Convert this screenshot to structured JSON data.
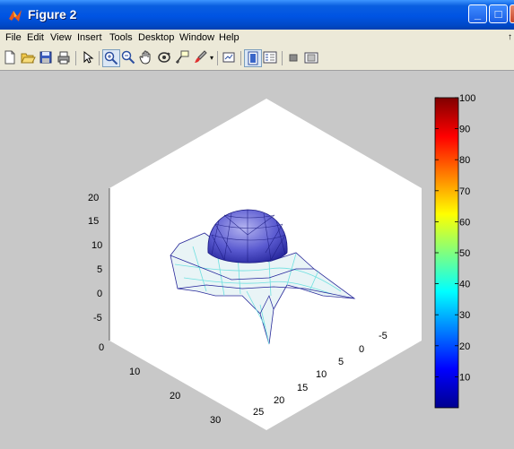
{
  "window": {
    "title": "Figure 2",
    "controls": {
      "minimize": "_",
      "maximize": "□",
      "close": "X"
    }
  },
  "menu": {
    "items": [
      "File",
      "Edit",
      "View",
      "Insert",
      "Tools",
      "Desktop",
      "Window",
      "Help"
    ],
    "overflow_glyph": "↑"
  },
  "toolbar": {
    "tools": [
      {
        "name": "new-figure-icon",
        "active": false
      },
      {
        "name": "open-file-icon",
        "active": false
      },
      {
        "name": "save-icon",
        "active": false
      },
      {
        "name": "print-icon",
        "active": false
      },
      {
        "name": "edit-plot-arrow-icon",
        "active": false
      },
      {
        "name": "zoom-in-icon",
        "active": true
      },
      {
        "name": "zoom-out-icon",
        "active": false
      },
      {
        "name": "pan-hand-icon",
        "active": false
      },
      {
        "name": "rotate-3d-icon",
        "active": false
      },
      {
        "name": "data-cursor-icon",
        "active": false
      },
      {
        "name": "brush-icon",
        "active": false
      },
      {
        "name": "link-plot-icon",
        "active": false
      },
      {
        "name": "colorbar-icon",
        "active": true
      },
      {
        "name": "legend-icon",
        "active": false
      },
      {
        "name": "hide-plot-tools-icon",
        "active": false
      },
      {
        "name": "show-plot-tools-icon",
        "active": false
      }
    ]
  },
  "chart_data": {
    "type": "surface",
    "colormap": "jet",
    "z_ticks": [
      "-5",
      "0",
      "5",
      "10",
      "15",
      "20"
    ],
    "x_ticks": [
      "0",
      "10",
      "20",
      "30"
    ],
    "y_ticks": [
      "25",
      "20",
      "15",
      "10",
      "5",
      "0",
      "-5"
    ],
    "colorbar": {
      "min": 0,
      "max": 100,
      "ticks": [
        "10",
        "20",
        "30",
        "40",
        "50",
        "60",
        "70",
        "80",
        "90",
        "100"
      ]
    },
    "grid": false,
    "legend": "none"
  }
}
